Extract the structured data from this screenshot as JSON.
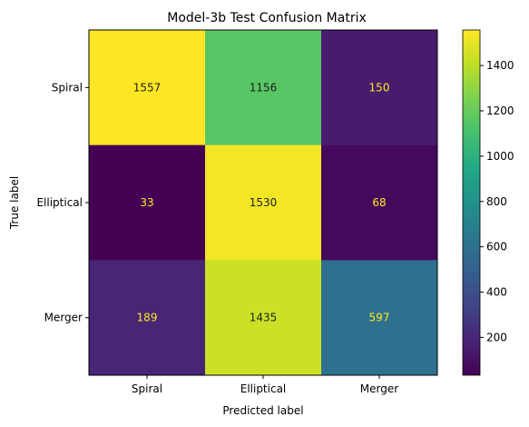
{
  "chart_data": {
    "type": "heatmap",
    "title": "Model-3b Test Confusion Matrix",
    "xlabel": "Predicted label",
    "ylabel": "True label",
    "x_categories": [
      "Spiral",
      "Elliptical",
      "Merger"
    ],
    "y_categories": [
      "Spiral",
      "Elliptical",
      "Merger"
    ],
    "values": [
      [
        1557,
        1156,
        150
      ],
      [
        33,
        1530,
        68
      ],
      [
        189,
        1435,
        597
      ]
    ],
    "colormap": "viridis",
    "color_range": [
      33,
      1557
    ],
    "colorbar_ticks": [
      200,
      400,
      600,
      800,
      1000,
      1200,
      1400
    ],
    "colorbar_tick_labels": [
      "200",
      "400",
      "600",
      "800",
      "1000",
      "1200",
      "1400"
    ],
    "text_color_light": "#fde725",
    "text_color_dark": "#1f1f1f"
  }
}
